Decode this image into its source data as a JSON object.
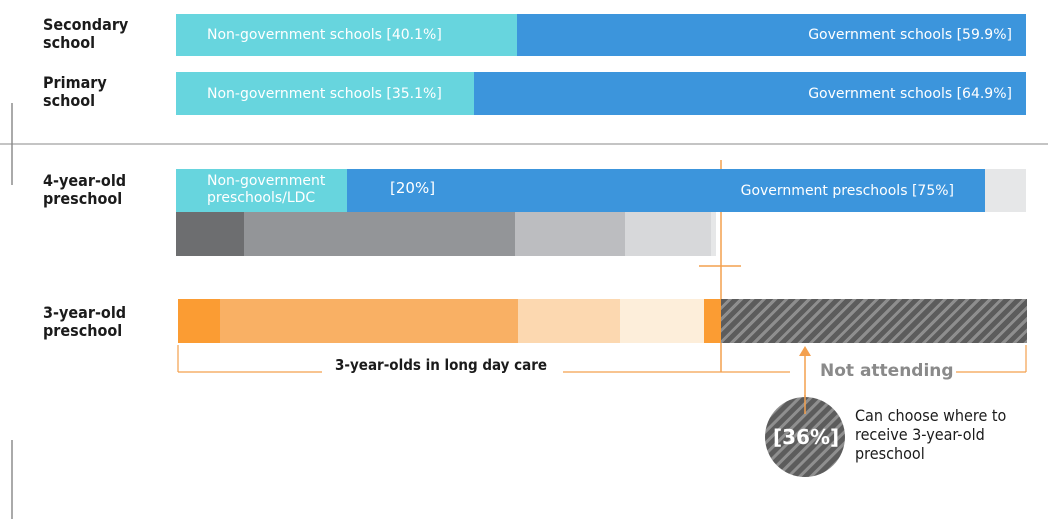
{
  "chart_data": {
    "type": "bar",
    "orientation": "horizontal",
    "stacked": true,
    "categories": [
      "Secondary school",
      "Primary school",
      "4-year-old preschool",
      "3-year-old preschool"
    ],
    "rows": [
      {
        "label": "Secondary\nschool",
        "segments": [
          {
            "label": "Non-government schools  [40.1%]",
            "value": 40.1,
            "color": "#67d5de"
          },
          {
            "label": "Government schools [59.9%]",
            "value": 59.9,
            "color": "#3c95dc"
          }
        ]
      },
      {
        "label": "Primary\nschool",
        "segments": [
          {
            "label": "Non-government schools  [35.1%]",
            "value": 35.1,
            "color": "#67d5de"
          },
          {
            "label": "Government schools [64.9%]",
            "value": 64.9,
            "color": "#3c95dc"
          }
        ]
      },
      {
        "label": "4-year-old\npreschool",
        "segments": [
          {
            "label": "Non-government\npreschools/LDC",
            "value": 20,
            "color": "#67d5de"
          },
          {
            "label": "Government preschools [75%]",
            "value": 75,
            "color": "#3c95dc"
          },
          {
            "label": "",
            "value": 5,
            "color": "#e6e7e8"
          }
        ],
        "sub_segments": [
          {
            "value": 8,
            "color": "#6d6e70"
          },
          {
            "value": 32,
            "color": "#939598"
          },
          {
            "value": 13,
            "color": "#bcbdc0"
          },
          {
            "value": 10,
            "color": "#d7d8da"
          },
          {
            "value": 1,
            "color": "#e6e7e8"
          }
        ]
      },
      {
        "label": "3-year-old\npreschool",
        "segments": [
          {
            "value": 5,
            "color": "#fb9c33"
          },
          {
            "value": 35,
            "color": "#f9b064"
          },
          {
            "value": 12,
            "color": "#fcd8b0"
          },
          {
            "value": 10,
            "color": "#fdeeda"
          },
          {
            "value": 2,
            "color": "#fb9c33"
          },
          {
            "value": 36,
            "color": "#555555",
            "pattern": "hatched"
          }
        ]
      }
    ],
    "annotations": {
      "gov_4yo_share": "[20%]",
      "long_day_care": "3-year-olds in  long day care",
      "not_attending": "Not attending",
      "choice_value": "[36%]",
      "choice_text": "Can choose where to\nreceive 3-year-old\npreschool"
    },
    "colors": {
      "non_government": "#67d5de",
      "government": "#3c95dc",
      "accent_orange": "#f3a04e",
      "not_attending_text": "#8a8a8a"
    }
  }
}
